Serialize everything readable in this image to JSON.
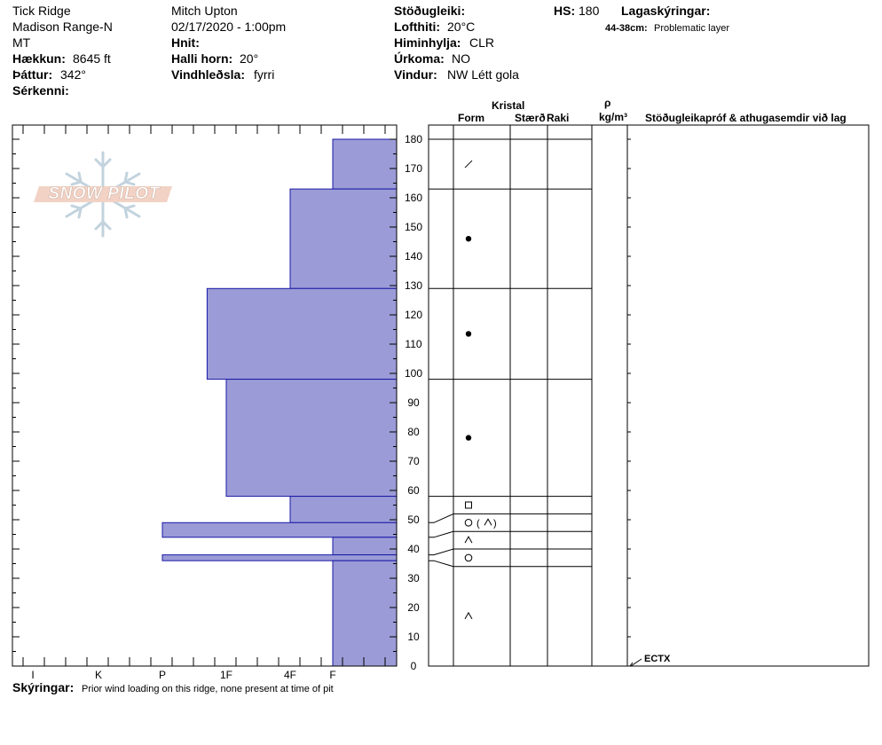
{
  "header": {
    "location": "Tick Ridge",
    "range": "Madison Range-N",
    "state": "MT",
    "elevation_label": "Hækkun:",
    "elevation": "8645 ft",
    "aspect_label": "Þáttur:",
    "aspect": "342°",
    "specifics_label": "Sérkenni:",
    "observer": "Mitch Upton",
    "datetime": "02/17/2020 - 1:00pm",
    "coords_label": "Hnit:",
    "slope_label": "Halli horn:",
    "slope": "20°",
    "wind_loading_label": "Vindhleðsla:",
    "wind_loading": "fyrri",
    "stability_label": "Stöðugleiki:",
    "air_temp_label": "Lofthiti:",
    "air_temp": "20°C",
    "sky_label": "Himinhylja:",
    "sky": "CLR",
    "precip_label": "Úrkoma:",
    "precip": "NO",
    "wind_label": "Vindur:",
    "wind": "NW Létt gola",
    "hs_label": "HS:",
    "hs": "180",
    "legend_label": "Lagaskýringar:",
    "legend_range": "44-38cm:",
    "legend_text": "Problematic layer"
  },
  "notes": {
    "label": "Skýringar:",
    "text": "Prior wind loading on this ridge, none present at time of pit"
  },
  "columns": {
    "crystal": "Kristal",
    "form": "Form",
    "size": "Stærð",
    "moisture": "Raki",
    "rho": "ρ",
    "density_unit": "kg/m³",
    "stability_tests": "Stöðugleikapróf & athugasemdir við lag"
  },
  "stability_tests": [
    {
      "depth": 0,
      "label": "ECTX"
    }
  ],
  "logo": {
    "text": "SNOW PILOT"
  },
  "colors": {
    "hardness_fill": "#9b9bd7",
    "hardness_stroke": "#1a1aa6"
  },
  "chart_data": {
    "type": "bar",
    "orientation": "horizontal",
    "xlabel": "",
    "ylabel": "",
    "hardness_ticks": [
      "I",
      "K",
      "P",
      "1F",
      "4F",
      "F"
    ],
    "hardness_scale": {
      "F": 1,
      "4F": 2,
      "1F": 3,
      "P": 4,
      "K": 5,
      "I": 6
    },
    "ylim": [
      0,
      180
    ],
    "y_ticks": [
      0,
      10,
      20,
      30,
      40,
      50,
      60,
      70,
      80,
      90,
      100,
      110,
      120,
      130,
      140,
      150,
      160,
      170,
      180
    ],
    "layers": [
      {
        "top": 180,
        "bottom": 163,
        "hardness": "F"
      },
      {
        "top": 163,
        "bottom": 129,
        "hardness": "4F"
      },
      {
        "top": 129,
        "bottom": 98,
        "hardness": "1F+"
      },
      {
        "top": 98,
        "bottom": 58,
        "hardness": "1F"
      },
      {
        "top": 58,
        "bottom": 49,
        "hardness": "4F"
      },
      {
        "top": 49,
        "bottom": 44,
        "hardness": "P"
      },
      {
        "top": 44,
        "bottom": 38,
        "hardness": "F"
      },
      {
        "top": 38,
        "bottom": 36,
        "hardness": "P"
      },
      {
        "top": 36,
        "bottom": 0,
        "hardness": "F"
      }
    ],
    "hardness_values": [
      1,
      2,
      3.3,
      3,
      2,
      4,
      1,
      4,
      1
    ],
    "crystal_layers": [
      {
        "top": 180,
        "bottom": 163,
        "form": "decomposing"
      },
      {
        "top": 163,
        "bottom": 129,
        "form": "rounds"
      },
      {
        "top": 129,
        "bottom": 98,
        "form": "rounds"
      },
      {
        "top": 98,
        "bottom": 58,
        "form": "rounds"
      },
      {
        "top": 58,
        "bottom": 52,
        "form": "facets"
      },
      {
        "top": 52,
        "bottom": 46,
        "form": "melt-freeze (depth hoar)"
      },
      {
        "top": 46,
        "bottom": 40,
        "form": "depth hoar"
      },
      {
        "top": 40,
        "bottom": 34,
        "form": "melt-freeze"
      },
      {
        "top": 34,
        "bottom": 0,
        "form": "depth hoar"
      }
    ]
  }
}
